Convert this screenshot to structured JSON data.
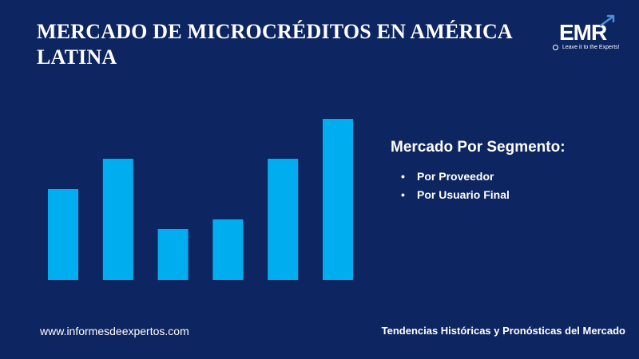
{
  "title": "MERCADO DE MICROCRÉDITOS EN AMÉRICA LATINA",
  "logo": {
    "mark": "EMR",
    "tagline": "Leave it to the Experts!",
    "icon": "upward-arrow-icon"
  },
  "segment": {
    "heading": "Mercado Por Segmento:",
    "items": [
      {
        "bullet": "•",
        "label": "Por Proveedor"
      },
      {
        "bullet": "•",
        "label": "Por Usuario Final"
      }
    ]
  },
  "footer": {
    "website": "www.informesdeexpertos.com",
    "caption": "Tendencias Históricas y Pronósticas del Mercado"
  },
  "colors": {
    "background": "#0d2561",
    "bar": "#00aeef",
    "text": "#ffffff"
  },
  "chart_data": {
    "type": "bar",
    "title": "",
    "xlabel": "",
    "ylabel": "",
    "categories": [
      "",
      "",
      "",
      "",
      "",
      ""
    ],
    "values": [
      57,
      76,
      32,
      38,
      76,
      101
    ],
    "ylim": [
      0,
      110
    ],
    "grid": false,
    "axes_visible": false
  }
}
